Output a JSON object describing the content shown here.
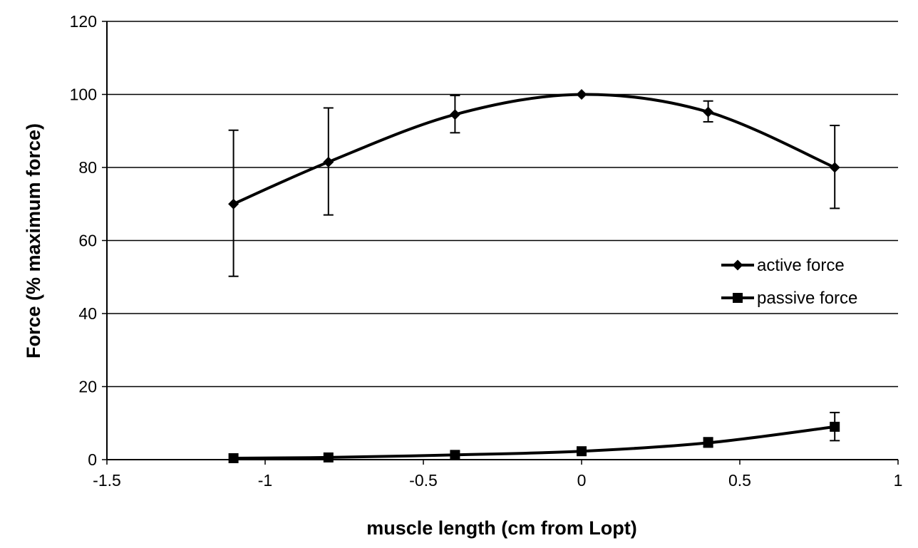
{
  "chart_data": {
    "type": "scatter",
    "title": "",
    "xlabel": "muscle length (cm from Lopt)",
    "ylabel": "Force (% maximum force)",
    "xlim": [
      -1.5,
      1
    ],
    "ylim": [
      0,
      120
    ],
    "x_ticks": [
      -1.5,
      -1,
      -0.5,
      0,
      0.5,
      1
    ],
    "x_tick_labels": [
      "-1.5",
      "-1",
      "-0.5",
      "0",
      "0.5",
      "1"
    ],
    "y_ticks": [
      0,
      20,
      40,
      60,
      80,
      100,
      120
    ],
    "y_tick_labels": [
      "0",
      "20",
      "40",
      "60",
      "80",
      "100",
      "120"
    ],
    "grid": "horizontal major gridlines",
    "legend_position": "right, middle",
    "smoothed_lines": true,
    "series": [
      {
        "name": "active force",
        "marker": "diamond",
        "color": "#000000",
        "x": [
          -1.1,
          -0.8,
          -0.4,
          0,
          0.4,
          0.8
        ],
        "y": [
          70,
          81.5,
          94.5,
          100,
          95.2,
          80
        ],
        "error_low": [
          50.2,
          67,
          89.5,
          100,
          92.5,
          68.8
        ],
        "error_high": [
          90.2,
          96.3,
          99.7,
          100,
          98.2,
          91.5
        ]
      },
      {
        "name": "passive force",
        "marker": "square",
        "color": "#000000",
        "x": [
          -1.1,
          -0.8,
          -0.4,
          0,
          0.4,
          0.8
        ],
        "y": [
          0.4,
          0.6,
          1.3,
          2.3,
          4.6,
          9
        ],
        "error_low": [
          0.4,
          0.6,
          1.3,
          2.3,
          3.5,
          5.2
        ],
        "error_high": [
          0.4,
          0.6,
          1.3,
          2.3,
          6,
          12.9
        ]
      }
    ]
  }
}
